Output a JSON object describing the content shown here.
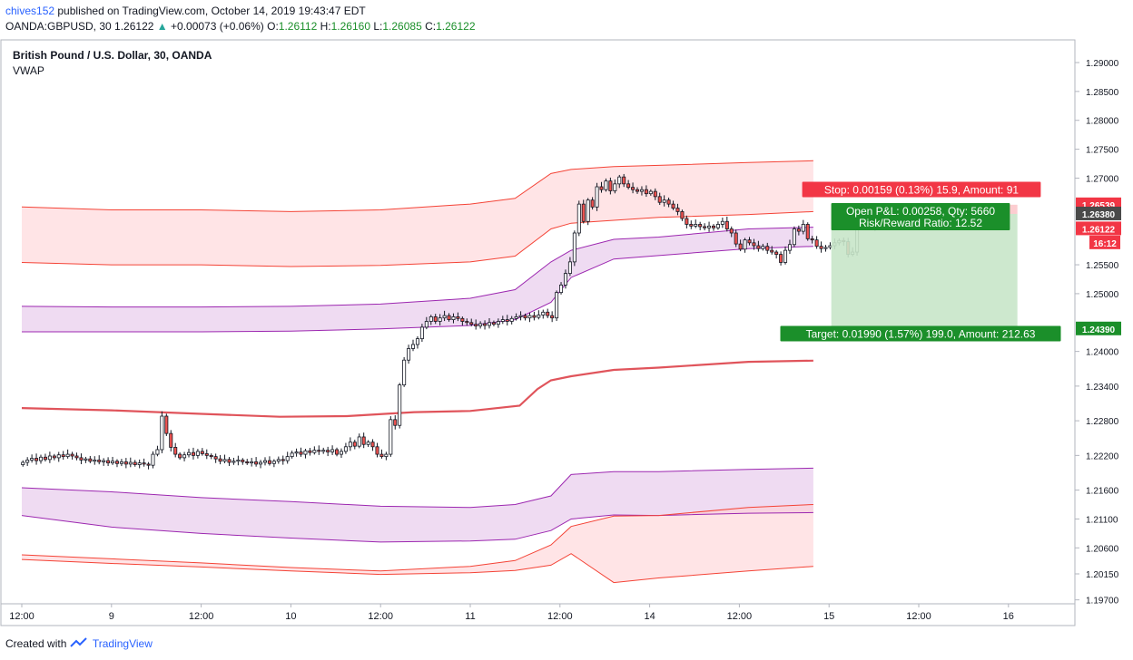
{
  "header": {
    "user": "chives152",
    "published_text": " published on TradingView.com, October 14, 2019 19:43:47 EDT",
    "symbol": "OANDA:GBPUSD, 30",
    "last": "1.26122",
    "change": "+0.00073 (+0.06%)",
    "o_label": "O:",
    "o_val": "1.26112",
    "h_label": "H:",
    "h_val": "1.26160",
    "l_label": "L:",
    "l_val": "1.26085",
    "c_label": "C:",
    "c_val": "1.26122"
  },
  "footer": {
    "created": "Created with",
    "brand": "TradingView"
  },
  "chart_data": {
    "type": "candlestick",
    "title": "British Pound / U.S. Dollar, 30, OANDA",
    "indicator": "VWAP",
    "ylim": [
      1.197,
      1.2905
    ],
    "y_ticks": [
      "1.29000",
      "1.28500",
      "1.28000",
      "1.27500",
      "1.27000",
      "1.25500",
      "1.25000",
      "1.24000",
      "1.23400",
      "1.22800",
      "1.22200",
      "1.21600",
      "1.21100",
      "1.20600",
      "1.20150",
      "1.19700"
    ],
    "x_ticks": [
      "12:00",
      "9",
      "12:00",
      "10",
      "12:00",
      "11",
      "12:00",
      "14",
      "12:00",
      "15",
      "12:00",
      "16"
    ],
    "x_tick_pos": [
      0,
      4,
      8,
      12,
      16,
      20,
      24,
      28,
      32,
      36,
      40,
      44
    ],
    "x_count": 46.2,
    "bar_start": 0.05,
    "bar_step": 0.2,
    "closes": [
      1.2208,
      1.2212,
      1.2215,
      1.2211,
      1.2217,
      1.2213,
      1.2219,
      1.2216,
      1.2221,
      1.2218,
      1.2222,
      1.2219,
      1.2216,
      1.2212,
      1.2214,
      1.221,
      1.2212,
      1.2209,
      1.2211,
      1.2207,
      1.221,
      1.2206,
      1.2209,
      1.2205,
      1.2208,
      1.2204,
      1.2207,
      1.2205,
      1.2203,
      1.2222,
      1.223,
      1.2288,
      1.2258,
      1.2234,
      1.2222,
      1.2216,
      1.2221,
      1.2225,
      1.222,
      1.2227,
      1.2223,
      1.222,
      1.2218,
      1.2214,
      1.221,
      1.2213,
      1.2208,
      1.221,
      1.2212,
      1.2209,
      1.2207,
      1.2209,
      1.2205,
      1.2208,
      1.2211,
      1.2206,
      1.221,
      1.2213,
      1.2211,
      1.2218,
      1.2224,
      1.2226,
      1.2222,
      1.2228,
      1.2225,
      1.2229,
      1.2227,
      1.2229,
      1.2226,
      1.223,
      1.2222,
      1.2227,
      1.2235,
      1.2243,
      1.2236,
      1.2252,
      1.2239,
      1.2243,
      1.2235,
      1.2222,
      1.2218,
      1.2222,
      1.2282,
      1.2272,
      1.2342,
      1.2385,
      1.2405,
      1.2412,
      1.2422,
      1.2442,
      1.2452,
      1.246,
      1.2452,
      1.2458,
      1.2462,
      1.2455,
      1.246,
      1.2457,
      1.2452,
      1.245,
      1.2447,
      1.2444,
      1.2448,
      1.2445,
      1.245,
      1.2447,
      1.2452,
      1.2455,
      1.2452,
      1.2457,
      1.246,
      1.2462,
      1.2458,
      1.2462,
      1.2459,
      1.2463,
      1.2468,
      1.2462,
      1.2458,
      1.2502,
      1.2515,
      1.2535,
      1.2555,
      1.2605,
      1.2655,
      1.2625,
      1.2662,
      1.265,
      1.2685,
      1.268,
      1.2695,
      1.2678,
      1.269,
      1.2702,
      1.269,
      1.2684,
      1.268,
      1.2677,
      1.268,
      1.2673,
      1.2677,
      1.2668,
      1.2658,
      1.2662,
      1.2655,
      1.2648,
      1.2642,
      1.263,
      1.262,
      1.2617,
      1.262,
      1.2616,
      1.2614,
      1.2617,
      1.2614,
      1.262,
      1.2625,
      1.2612,
      1.2605,
      1.2586,
      1.2577,
      1.2593,
      1.2588,
      1.2583,
      1.2578,
      1.2582,
      1.2575,
      1.2572,
      1.2568,
      1.2554,
      1.2575,
      1.2585,
      1.2612,
      1.2608,
      1.262,
      1.2595,
      1.2593,
      1.2582,
      1.2578,
      1.258,
      1.2583,
      1.2588,
      1.2592,
      1.259,
      1.2568,
      1.2572,
      1.262,
      1.2635,
      1.2625,
      1.2618,
      1.2612
    ],
    "vwap": {
      "x": [
        0,
        4,
        8,
        11.5,
        14.5,
        16.2,
        17.5,
        20,
        22.2,
        23,
        23.6,
        24.5,
        26.4,
        28.4,
        32.4,
        35.3
      ],
      "y": [
        1.2302,
        1.2298,
        1.2292,
        1.2287,
        1.2288,
        1.2292,
        1.2295,
        1.2297,
        1.2306,
        1.2335,
        1.235,
        1.2357,
        1.2368,
        1.2372,
        1.2382,
        1.2384
      ]
    },
    "upper_band_1": {
      "x": [
        0,
        4,
        8,
        12,
        16,
        20,
        22,
        23.6,
        24.5,
        26.4,
        28.4,
        32.4,
        35.3
      ],
      "y": [
        1.2478,
        1.2477,
        1.2477,
        1.2478,
        1.2482,
        1.2492,
        1.2507,
        1.2555,
        1.2575,
        1.2594,
        1.2598,
        1.2612,
        1.2615
      ]
    },
    "upper_band_2": {
      "x": [
        0,
        4,
        8,
        12,
        16,
        20,
        22,
        23.6,
        24.5,
        26.4,
        28.4,
        32.4,
        35.3
      ],
      "y": [
        1.2434,
        1.2434,
        1.2434,
        1.2435,
        1.2439,
        1.2445,
        1.2455,
        1.2485,
        1.2528,
        1.256,
        1.2566,
        1.2578,
        1.2582
      ]
    },
    "upper_band_3": {
      "x": [
        0,
        4,
        8,
        12,
        16,
        20,
        22,
        23.6,
        24.5,
        26.4,
        28.4,
        32.4,
        35.3
      ],
      "y": [
        1.265,
        1.2645,
        1.2645,
        1.2642,
        1.2645,
        1.2655,
        1.2665,
        1.2708,
        1.2715,
        1.272,
        1.2722,
        1.2727,
        1.273
      ]
    },
    "upper_band_4": {
      "x": [
        0,
        4,
        8,
        12,
        16,
        20,
        22,
        23.6,
        24.5,
        26.4,
        28.4,
        32.4,
        35.3
      ],
      "y": [
        1.2554,
        1.255,
        1.255,
        1.2547,
        1.2549,
        1.2555,
        1.2565,
        1.2612,
        1.2622,
        1.2627,
        1.2632,
        1.2637,
        1.2642
      ]
    },
    "lower_band_1": {
      "x": [
        0,
        4,
        8,
        12,
        16,
        20,
        22,
        23.6,
        24.5,
        26.4,
        28.4,
        32.4,
        35.3
      ],
      "y": [
        1.2164,
        1.2157,
        1.2147,
        1.214,
        1.2132,
        1.213,
        1.2135,
        1.215,
        1.2187,
        1.2192,
        1.2192,
        1.2196,
        1.2198
      ]
    },
    "lower_band_2": {
      "x": [
        0,
        4,
        8,
        12,
        16,
        20,
        22,
        23.6,
        24.5,
        26.4,
        28.4,
        32.4,
        35.3
      ],
      "y": [
        1.2116,
        1.2096,
        1.2085,
        1.2077,
        1.207,
        1.2072,
        1.2075,
        1.209,
        1.211,
        1.2117,
        1.2116,
        1.212,
        1.2121
      ]
    },
    "lower_band_3": {
      "x": [
        0,
        4,
        8,
        12,
        16,
        20,
        22,
        23.6,
        24.5,
        26.4,
        28.4,
        32.4,
        35.3
      ],
      "y": [
        1.2048,
        1.2041,
        1.2034,
        1.2026,
        1.202,
        1.2028,
        1.2038,
        1.2065,
        1.2097,
        1.2115,
        1.2116,
        1.213,
        1.2135
      ]
    },
    "lower_band_4": {
      "x": [
        0,
        4,
        8,
        12,
        16,
        20,
        22,
        23.6,
        24.5,
        26.4,
        28.4,
        32.4,
        35.3
      ],
      "y": [
        1.204,
        1.2033,
        1.2027,
        1.202,
        1.2014,
        1.2017,
        1.2021,
        1.203,
        1.205,
        1.2,
        1.2008,
        1.202,
        1.2028
      ]
    },
    "position": {
      "entry": 1.2638,
      "stop": 1.26539,
      "target": 1.2439,
      "x_range": [
        36.1,
        44.4
      ],
      "stop_label": "Stop: 0.00159 (0.13%) 15.9, Amount: 91",
      "pnl_label": "Open P&L: 0.00258, Qty: 5660",
      "rr_label": "Risk/Reward Ratio: 12.52",
      "target_label": "Target: 0.01990 (1.57%) 199.0, Amount: 212.63"
    },
    "price_tags": [
      {
        "label": "1.26539",
        "value": 1.26539,
        "bg": "#f23645",
        "fg": "#ffffff",
        "bold": true
      },
      {
        "label": "1.26380",
        "value": 1.2638,
        "bg": "#4a4a4a",
        "fg": "#ffffff",
        "bold": true
      },
      {
        "label": "1.26122",
        "value": 1.26122,
        "bg": "#f23645",
        "fg": "#ffffff",
        "bold": true
      },
      {
        "label": "16:12",
        "value": 1.2588,
        "bg": "#f23645",
        "fg": "#ffffff",
        "bold": true
      },
      {
        "label": "1.24390",
        "value": 1.2439,
        "bg": "#1b8f2a",
        "fg": "#ffffff",
        "bold": true
      }
    ],
    "colors": {
      "up": "#26a69a",
      "down": "#ef5350",
      "candle": "#131722",
      "vwap": "#e0545b",
      "band_purple": "#9c27b0",
      "band_purple_fill": "#e1bee7",
      "band_red": "#f44336",
      "band_red_fill": "#ffcdd2",
      "stop_bg": "#f23645",
      "target_bg": "#1b8f2a",
      "target_zone": "#c8e6c9"
    }
  }
}
